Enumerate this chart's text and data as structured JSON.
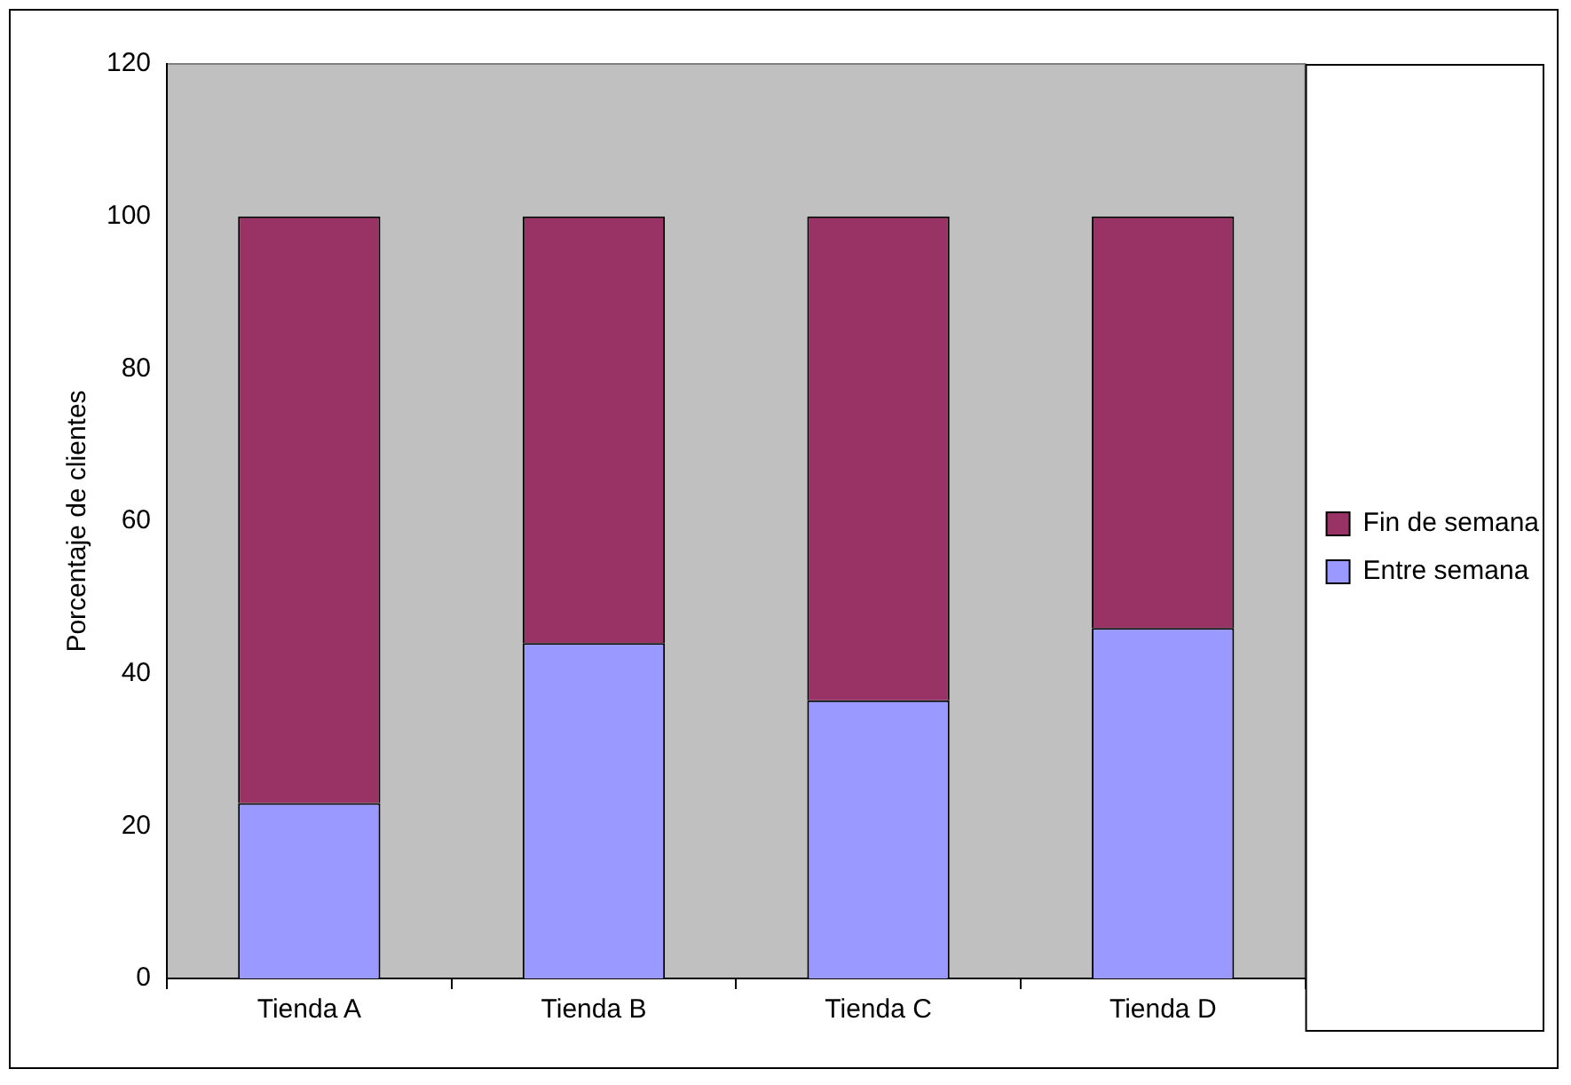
{
  "chart_data": {
    "type": "bar",
    "stacked": true,
    "ylabel": "Porcentaje de clientes",
    "categories": [
      "Tienda A",
      "Tienda B",
      "Tienda C",
      "Tienda D"
    ],
    "series": [
      {
        "name": "Entre semana",
        "color": "#9999ff",
        "values": [
          23,
          44,
          36.5,
          46
        ]
      },
      {
        "name": "Fin de semana",
        "color": "#993366",
        "values": [
          77,
          56,
          63.5,
          54
        ]
      }
    ],
    "ylim": [
      0,
      120
    ],
    "yticks": [
      0,
      20,
      40,
      60,
      80,
      100,
      120
    ],
    "grid": false,
    "legend": "right"
  }
}
